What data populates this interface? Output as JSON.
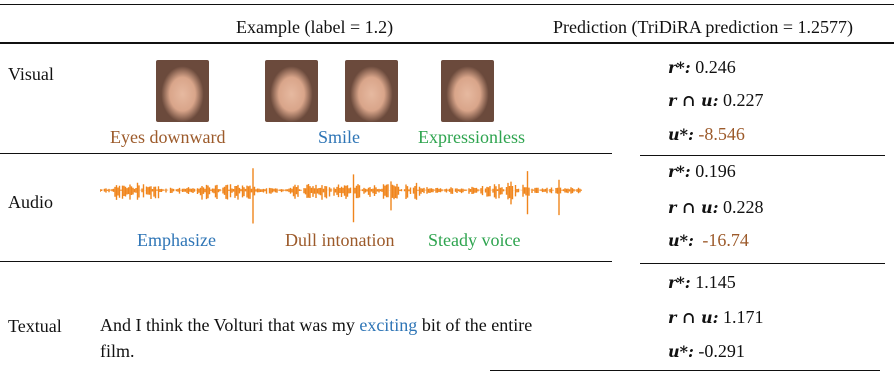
{
  "header": {
    "example": "Example (label = 1.2)",
    "prediction": "Prediction (TriDiRA prediction = 1.2577)"
  },
  "rows": [
    {
      "modality": "Visual",
      "labels": [
        "Eyes downward",
        "Smile",
        "Expressionless"
      ],
      "predictions": [
        {
          "name": "r*:",
          "value": 0.246
        },
        {
          "name": "r ∩ u:",
          "value": 0.227
        },
        {
          "name": "u*:",
          "value": -8.546
        }
      ]
    },
    {
      "modality": "Audio",
      "labels": [
        "Emphasize",
        "Dull intonation",
        "Steady voice"
      ],
      "predictions": [
        {
          "name": "r*:",
          "value": 0.196
        },
        {
          "name": "r ∩ u:",
          "value": 0.228
        },
        {
          "name": "u*:",
          "value": -16.74
        }
      ]
    },
    {
      "modality": "Textual",
      "text": [
        "And I think the Volturi that was my ",
        "exciting",
        " bit of the entire film."
      ],
      "predictions": [
        {
          "name": "r*:",
          "value": 1.145
        },
        {
          "name": "r ∩ u:",
          "value": 1.171
        },
        {
          "name": "u*:",
          "value": -0.291
        }
      ]
    }
  ]
}
